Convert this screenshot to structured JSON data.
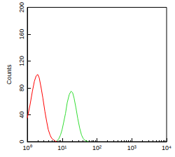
{
  "chart_data": {
    "type": "line",
    "y_label": "Counts",
    "log": "x",
    "x": [
      1,
      1.2,
      1.4,
      1.6,
      1.8,
      2,
      2.2,
      2.5,
      2.8,
      3.2,
      3.6,
      4,
      4.5,
      5,
      5.6,
      6.3,
      7,
      8,
      9,
      10,
      11,
      12.5,
      14,
      16,
      18,
      20,
      22,
      25,
      28,
      32,
      36,
      40,
      45,
      50,
      56
    ],
    "series": [
      {
        "color": "#ff0000",
        "values": [
          35,
          55,
          75,
          90,
          98,
          100,
          95,
          80,
          65,
          45,
          30,
          18,
          10,
          5,
          3,
          1,
          0,
          null,
          null,
          null,
          null,
          null,
          null,
          null,
          null,
          null,
          null,
          null,
          null,
          null,
          null,
          null,
          null,
          null,
          null
        ]
      },
      {
        "color": "#33dd33",
        "values": [
          null,
          null,
          null,
          null,
          null,
          null,
          null,
          null,
          null,
          null,
          null,
          null,
          null,
          null,
          null,
          null,
          1,
          4,
          10,
          18,
          28,
          42,
          58,
          70,
          75,
          73,
          65,
          50,
          35,
          20,
          10,
          5,
          2,
          1,
          0
        ]
      }
    ],
    "xlim": [
      1,
      10000
    ],
    "xticks": [
      {
        "value": 1,
        "label": "10⁰"
      },
      {
        "value": 10,
        "label": "10¹"
      },
      {
        "value": 100,
        "label": "10²"
      },
      {
        "value": 1000,
        "label": "10³"
      },
      {
        "value": 10000,
        "label": "10⁴"
      }
    ],
    "ylim": [
      0,
      200
    ],
    "yticks": [
      0,
      40,
      80,
      120,
      160,
      200
    ],
    "grid": false
  }
}
